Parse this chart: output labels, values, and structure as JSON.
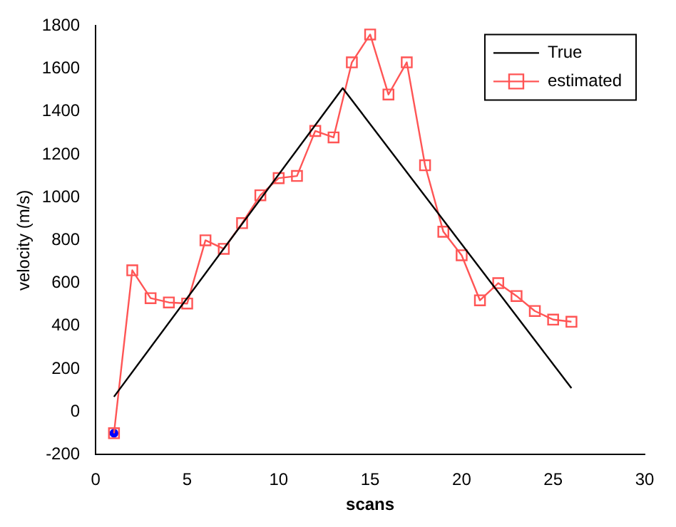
{
  "chart_data": {
    "type": "line",
    "xlabel": "scans",
    "ylabel": "velocity (m/s)",
    "xlim": [
      0,
      30
    ],
    "xticks": [
      0,
      5,
      10,
      15,
      20,
      25,
      30
    ],
    "ylim": [
      -200,
      1800
    ],
    "yticks": [
      -200,
      0,
      200,
      400,
      600,
      800,
      1000,
      1200,
      1400,
      1600,
      1800
    ],
    "grid": false,
    "legend": "top right",
    "series": [
      {
        "name": "True",
        "color": "#000000",
        "marker": "none",
        "x": [
          1,
          13.5,
          26
        ],
        "values": [
          70,
          1510,
          110
        ]
      },
      {
        "name": "estimated",
        "color": "#ff5555",
        "marker": "square",
        "x": [
          1,
          2,
          3,
          4,
          5,
          6,
          7,
          8,
          9,
          10,
          11,
          12,
          13,
          14,
          15,
          16,
          17,
          18,
          19,
          20,
          21,
          22,
          23,
          24,
          25,
          26
        ],
        "values": [
          -100,
          660,
          530,
          510,
          505,
          800,
          760,
          880,
          1010,
          1090,
          1100,
          1310,
          1280,
          1630,
          1760,
          1480,
          1630,
          1150,
          840,
          730,
          520,
          600,
          540,
          470,
          430,
          420
        ]
      },
      {
        "color": "#0000ff",
        "type": "scatter",
        "marker": "circle",
        "x": [
          1
        ],
        "values": [
          -100
        ]
      }
    ]
  }
}
